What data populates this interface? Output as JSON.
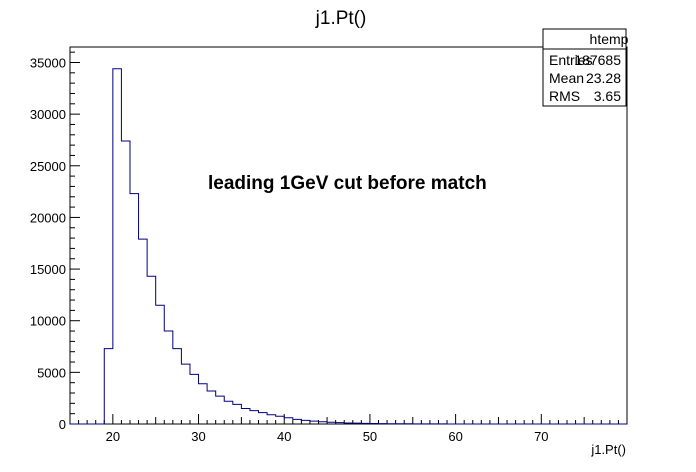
{
  "chart_data": {
    "type": "bar",
    "title": "j1.Pt()",
    "xlabel": "j1.Pt()",
    "ylabel": "",
    "xlim": [
      15,
      80
    ],
    "ylim": [
      0,
      36500
    ],
    "bin_width": 1,
    "x": [
      15,
      16,
      17,
      18,
      19,
      20,
      21,
      22,
      23,
      24,
      25,
      26,
      27,
      28,
      29,
      30,
      31,
      32,
      33,
      34,
      35,
      36,
      37,
      38,
      39,
      40,
      41,
      42,
      43,
      44,
      45,
      46,
      47,
      48,
      49,
      50,
      51,
      52,
      53,
      54,
      55,
      56,
      57,
      58,
      59,
      60,
      61,
      62,
      63,
      64,
      65,
      66,
      67,
      68,
      69,
      70,
      71,
      72,
      73,
      74,
      75,
      76,
      77,
      78,
      79
    ],
    "values": [
      0,
      0,
      0,
      0,
      7300,
      34400,
      27400,
      22300,
      17900,
      14300,
      11500,
      9000,
      7300,
      5800,
      4800,
      3900,
      3200,
      2700,
      2200,
      1900,
      1500,
      1300,
      1100,
      900,
      750,
      600,
      450,
      350,
      280,
      220,
      170,
      130,
      100,
      80,
      60,
      50,
      40,
      30,
      25,
      20,
      15,
      12,
      10,
      8,
      6,
      5,
      4,
      3,
      3,
      2,
      2,
      2,
      1,
      1,
      1,
      1,
      1,
      1,
      0,
      0,
      0,
      0,
      0,
      0,
      0
    ],
    "x_ticks": [
      20,
      30,
      40,
      50,
      60,
      70
    ],
    "y_ticks": [
      0,
      5000,
      10000,
      15000,
      20000,
      25000,
      30000,
      35000
    ],
    "line_color": "#000080",
    "annotation": "leading 1GeV cut before match",
    "stats": {
      "name": "htemp",
      "rows": [
        {
          "label": "Entries",
          "value": "187685"
        },
        {
          "label": "Mean",
          "value": "23.28"
        },
        {
          "label": "RMS",
          "value": "3.65"
        }
      ]
    }
  }
}
